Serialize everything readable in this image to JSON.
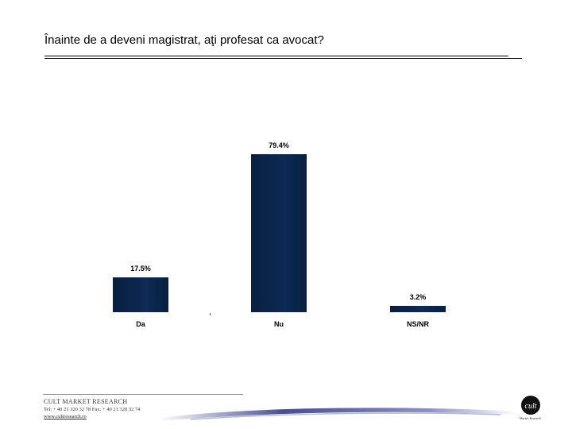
{
  "title": "Înainte de a deveni magistrat, aţi profesat ca avocat?",
  "chart_data": {
    "type": "bar",
    "categories": [
      "Da",
      "Nu",
      "NS/NR"
    ],
    "values": [
      17.5,
      79.4,
      3.2
    ],
    "value_labels": [
      "17.5%",
      "79.4%",
      "3.2%"
    ],
    "ylim": [
      0,
      100
    ],
    "bar_color": "#0d2a55",
    "bar_color_dark": "#08203f",
    "grid": false,
    "legend": "none"
  },
  "footer": {
    "company": "CULT MARKET RESEARCH",
    "phone": "Tel: + 40 21 320 32 78 Fax: + 40 21 320 32 74",
    "website": "www.cultresearch.ro",
    "logo_mark": "cult",
    "logo_caption": "Market Research"
  }
}
